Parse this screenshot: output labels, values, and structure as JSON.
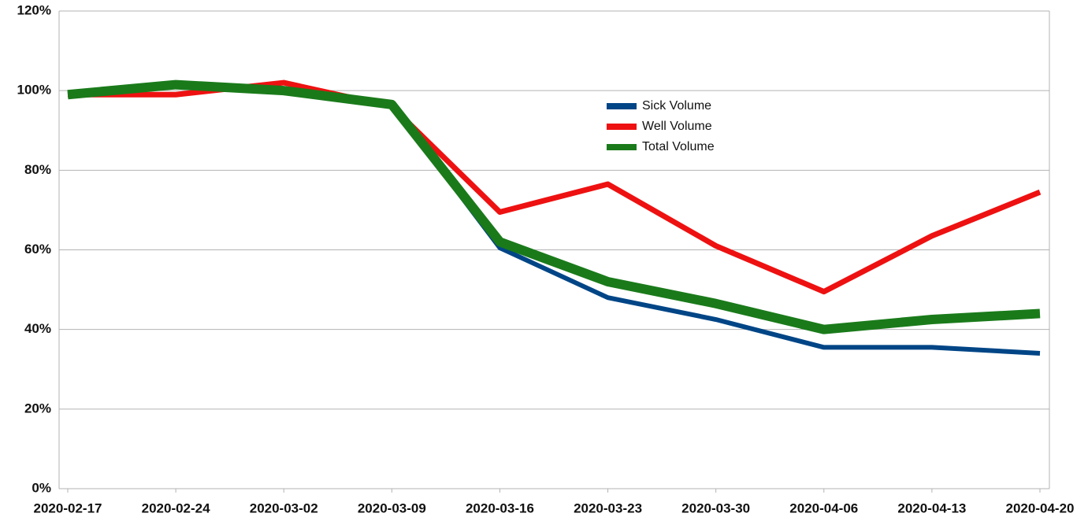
{
  "chart_data": {
    "type": "line",
    "categories": [
      "2020-02-17",
      "2020-02-24",
      "2020-03-02",
      "2020-03-09",
      "2020-03-16",
      "2020-03-23",
      "2020-03-30",
      "2020-04-06",
      "2020-04-13",
      "2020-04-20"
    ],
    "series": [
      {
        "name": "Sick Volume",
        "color": "#004586",
        "values": [
          99,
          101,
          100,
          96.5,
          60.5,
          48,
          42.5,
          35.5,
          35.5,
          34
        ]
      },
      {
        "name": "Well Volume",
        "color": "#ee1111",
        "values": [
          99,
          99,
          102,
          96,
          69.5,
          76.5,
          61,
          49.5,
          63.5,
          74.5
        ]
      },
      {
        "name": "Total Volume",
        "color": "#1a7a1a",
        "values": [
          99,
          101.5,
          100,
          96.5,
          62,
          52,
          46.5,
          40,
          42.5,
          44
        ]
      }
    ],
    "ylim": [
      0,
      120
    ],
    "yticks": [
      {
        "value": 0,
        "label": "0%"
      },
      {
        "value": 20,
        "label": "20%"
      },
      {
        "value": 40,
        "label": "40%"
      },
      {
        "value": 60,
        "label": "60%"
      },
      {
        "value": 80,
        "label": "80%"
      },
      {
        "value": 100,
        "label": "100%"
      },
      {
        "value": 120,
        "label": "120%"
      }
    ],
    "grid": true,
    "legend": "upper-center"
  }
}
